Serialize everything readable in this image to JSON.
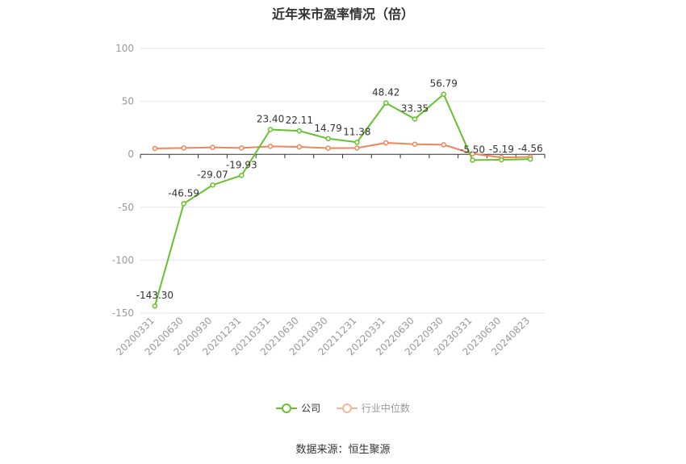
{
  "chart_data": {
    "type": "line",
    "title": "近年来市盈率情况（倍）",
    "categories": [
      "20200331",
      "20200630",
      "20200930",
      "20201231",
      "20210331",
      "20210630",
      "20210930",
      "20211231",
      "20220331",
      "20220630",
      "20220930",
      "20230331",
      "20230630",
      "20240823"
    ],
    "ylim": [
      -150,
      100
    ],
    "yticks": [
      100,
      50,
      0,
      -50,
      -100,
      -150
    ],
    "grid": true,
    "legend_position": "bottom",
    "series": [
      {
        "name": "公司",
        "color": "#66c12c",
        "values": [
          -143.3,
          -46.59,
          -29.07,
          -19.93,
          23.4,
          22.11,
          14.79,
          11.38,
          48.42,
          33.35,
          56.79,
          -5.5,
          -5.19,
          -4.56
        ],
        "labels": [
          "-143.30",
          "-46.59",
          "-29.07",
          "-19.93",
          "23.40",
          "22.11",
          "14.79",
          "11.38",
          "48.42",
          "33.35",
          "56.79",
          "-5.50",
          "-5.19",
          "-4.56"
        ]
      },
      {
        "name": "行业中位数",
        "color": "#f0855a",
        "values": [
          5.5,
          6.0,
          6.5,
          6.0,
          7.5,
          7.0,
          5.8,
          6.0,
          10.8,
          9.5,
          9.0,
          0.5,
          -3.0,
          -2.5
        ]
      }
    ]
  },
  "source": "数据来源：恒生聚源"
}
